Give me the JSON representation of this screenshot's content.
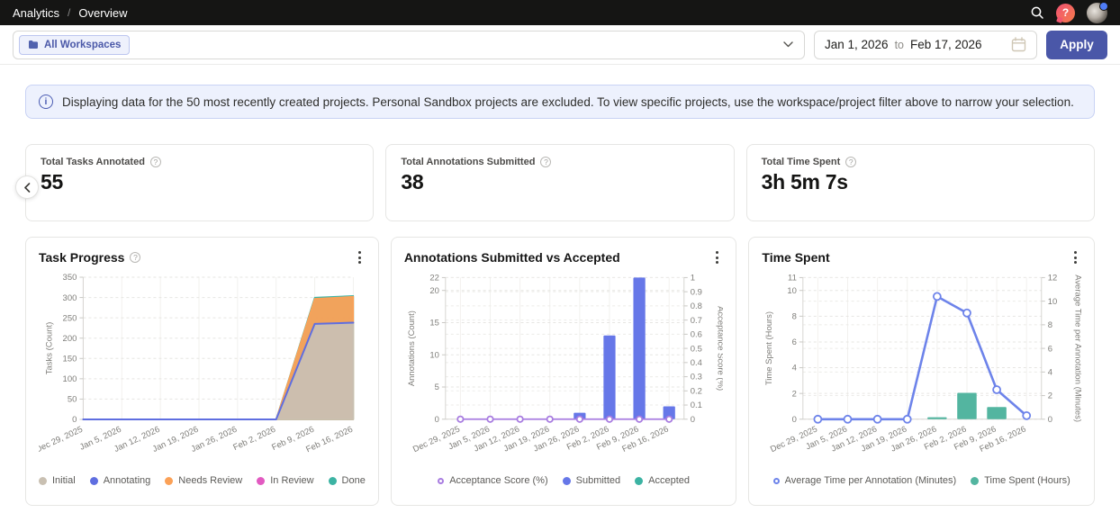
{
  "header": {
    "breadcrumb": [
      "Analytics",
      "Overview"
    ]
  },
  "filters": {
    "workspace_chip": "All Workspaces",
    "date_from": "Jan 1, 2026",
    "to_label": "to",
    "date_to": "Feb 17, 2026",
    "apply_label": "Apply"
  },
  "banner": {
    "text": "Displaying data for the 50 most recently created projects. Personal Sandbox projects are excluded. To view specific projects, use the workspace/project filter above to narrow your selection."
  },
  "stats": [
    {
      "label": "Total Tasks Annotated",
      "value": "55"
    },
    {
      "label": "Total Annotations Submitted",
      "value": "38"
    },
    {
      "label": "Total Time Spent",
      "value": "3h 5m 7s"
    }
  ],
  "chart_data": [
    {
      "type": "area",
      "title": "Task Progress",
      "has_help_icon": true,
      "band": false,
      "x": [
        "Dec 29, 2025",
        "Jan 5, 2026",
        "Jan 12, 2026",
        "Jan 19, 2026",
        "Jan 26, 2026",
        "Feb 2, 2026",
        "Feb 9, 2026",
        "Feb 16, 2026"
      ],
      "ylabel_left": "Tasks (Count)",
      "ylim_left": [
        0,
        350
      ],
      "yticks_left": [
        0,
        50,
        100,
        150,
        200,
        250,
        300,
        350
      ],
      "legend_position": "bottom",
      "grid": true,
      "series": [
        {
          "name": "Initial",
          "kind": "area",
          "axis": "left",
          "color": "#c9c0b2",
          "values": [
            0,
            0,
            0,
            0,
            0,
            0,
            233,
            236
          ]
        },
        {
          "name": "Annotating",
          "kind": "line",
          "axis": "left",
          "color": "#5f6ee0",
          "width": 2,
          "values": [
            0,
            0,
            0,
            0,
            0,
            0,
            235,
            238
          ]
        },
        {
          "name": "Needs Review",
          "kind": "area",
          "axis": "left",
          "color": "#fba157",
          "values": [
            0,
            0,
            0,
            0,
            0,
            0,
            297,
            302
          ]
        },
        {
          "name": "In Review",
          "kind": "line",
          "axis": "left",
          "color": "#e25ac1",
          "width": 2,
          "values": [
            0,
            0,
            0,
            0,
            0,
            0,
            0,
            0
          ]
        },
        {
          "name": "Done",
          "kind": "area",
          "axis": "left",
          "color": "#3cb3a3",
          "values": [
            0,
            0,
            0,
            0,
            0,
            0,
            300,
            304
          ]
        }
      ]
    },
    {
      "type": "bar+line",
      "title": "Annotations Submitted vs Accepted",
      "has_help_icon": false,
      "band": true,
      "bar_width_ratio": 0.4,
      "x": [
        "Dec 29, 2025",
        "Jan 5, 2026",
        "Jan 12, 2026",
        "Jan 19, 2026",
        "Jan 26, 2026",
        "Feb 2, 2026",
        "Feb 9, 2026",
        "Feb 16, 2026"
      ],
      "ylabel_left": "Annotations (Count)",
      "ylim_left": [
        0,
        22
      ],
      "yticks_left": [
        0,
        5,
        10,
        15,
        20,
        22
      ],
      "ylabel_right": "Acceptance Score (%)",
      "ylim_right": [
        0,
        1
      ],
      "yticks_right": [
        0,
        0.1,
        0.2,
        0.3,
        0.4,
        0.5,
        0.6,
        0.7,
        0.8,
        0.9,
        1.0
      ],
      "legend_position": "bottom",
      "grid": true,
      "series": [
        {
          "name": "Acceptance Score (%)",
          "kind": "line",
          "axis": "right",
          "color": "#a87ce0",
          "marker": "open",
          "width": 1.8,
          "values": [
            0,
            0,
            0,
            0,
            0,
            0,
            0,
            0
          ]
        },
        {
          "name": "Submitted",
          "kind": "bar",
          "axis": "left",
          "color": "#6677e8",
          "values": [
            0,
            0,
            0,
            0,
            1,
            13,
            22,
            2
          ]
        },
        {
          "name": "Accepted",
          "kind": "bar",
          "axis": "left",
          "color": "#3cb3a3",
          "values": [
            0,
            0,
            0,
            0,
            0,
            0,
            0,
            0
          ]
        }
      ]
    },
    {
      "type": "bar+line",
      "title": "Time Spent",
      "has_help_icon": false,
      "band": true,
      "bar_width_ratio": 0.65,
      "x": [
        "Dec 29, 2025",
        "Jan 5, 2026",
        "Jan 12, 2026",
        "Jan 19, 2026",
        "Jan 26, 2026",
        "Feb 2, 2026",
        "Feb 9, 2026",
        "Feb 16, 2026"
      ],
      "ylabel_left": "Time Spent (Hours)",
      "ylim_left": [
        0,
        11
      ],
      "yticks_left": [
        0,
        2,
        4,
        6,
        8,
        10,
        11
      ],
      "ylabel_right": "Average Time per Annotation (Minutes)",
      "ylim_right": [
        0,
        12
      ],
      "yticks_right": [
        0,
        2,
        4,
        6,
        8,
        10,
        12
      ],
      "legend_position": "bottom",
      "grid": true,
      "series": [
        {
          "name": "Average Time per Annotation (Minutes)",
          "kind": "line",
          "axis": "right",
          "color": "#6d83ea",
          "marker": "open",
          "width": 2.6,
          "values": [
            0,
            0,
            0,
            0,
            10.4,
            9,
            2.5,
            0.3
          ]
        },
        {
          "name": "Time Spent (Hours)",
          "kind": "bar",
          "axis": "left",
          "color": "#53b5a0",
          "values": [
            0,
            0,
            0,
            0,
            0.15,
            2.05,
            0.95,
            0
          ]
        }
      ]
    }
  ]
}
